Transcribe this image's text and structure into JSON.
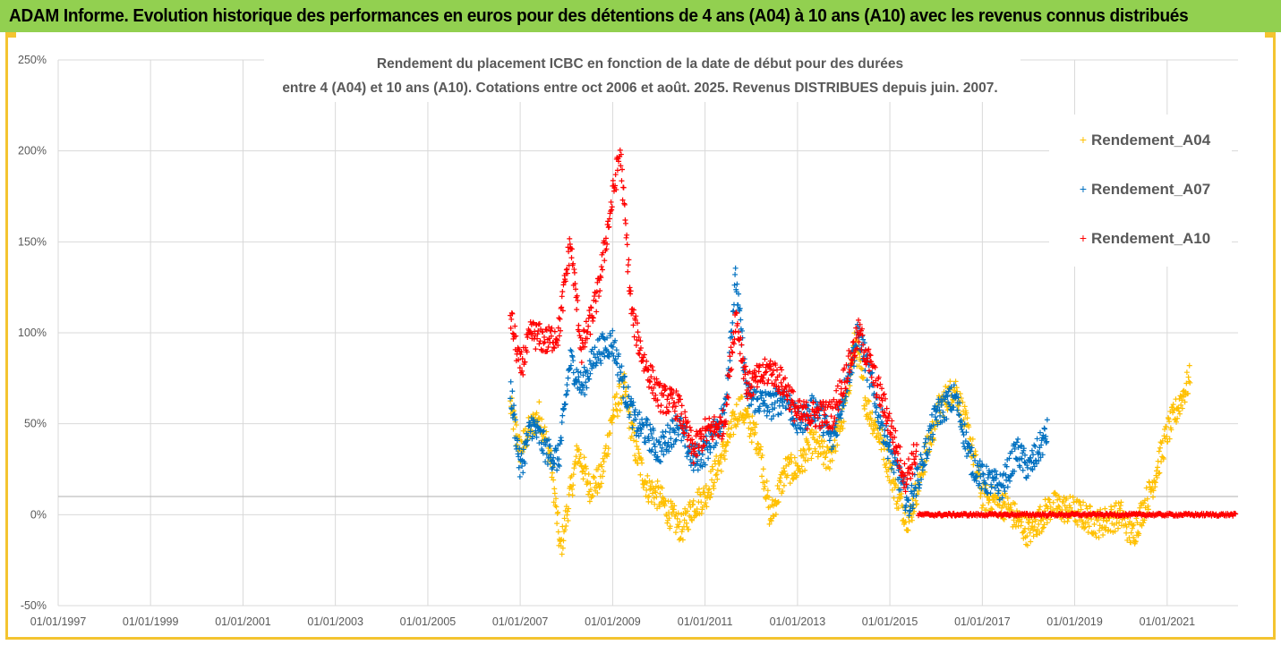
{
  "header": {
    "title": "ADAM Informe. Evolution historique des performances en euros pour des détentions de 4 ans (A04) à 10 ans (A10) avec les revenus connus distribués"
  },
  "colors": {
    "banner": "#92d050",
    "frame": "#f4c430",
    "A04": "#ffc000",
    "A07": "#0070c0",
    "A10": "#ff0000"
  },
  "chart_data": {
    "type": "scatter",
    "title_lines": [
      "Rendement du placement ICBC en fonction de la date de début pour des durées",
      "entre 4 (A04) et 10 ans (A10). Cotations entre oct 2006 et août. 2025. Revenus DISTRIBUES depuis juin. 2007."
    ],
    "xlabel": "",
    "ylabel": "",
    "xlim": [
      "1997-01-01",
      "2022-07-15"
    ],
    "ylim": [
      -50,
      250
    ],
    "x_tick_labels": [
      "01/01/1997",
      "01/01/1999",
      "01/01/2001",
      "01/01/2003",
      "01/01/2005",
      "01/01/2007",
      "01/01/2009",
      "01/01/2011",
      "01/01/2013",
      "01/01/2015",
      "01/01/2017",
      "01/01/2019",
      "01/01/2021"
    ],
    "y_tick_labels": [
      "-50%",
      "0%",
      "50%",
      "100%",
      "150%",
      "200%",
      "250%"
    ],
    "y_ticks": [
      -50,
      0,
      50,
      100,
      150,
      200,
      250
    ],
    "reference_line_y": 10,
    "grid": true,
    "legend_position": "top-right",
    "marker": "+",
    "series": [
      {
        "name": "Rendement_A04",
        "color": "#ffc000",
        "x_start": "2006-10-15",
        "x_end": "2021-07-01",
        "key_points": [
          [
            "2006-10-15",
            60
          ],
          [
            "2007-01-01",
            35
          ],
          [
            "2007-03-01",
            45
          ],
          [
            "2007-06-01",
            55
          ],
          [
            "2007-09-01",
            30
          ],
          [
            "2007-11-15",
            -20
          ],
          [
            "2008-01-15",
            5
          ],
          [
            "2008-04-01",
            35
          ],
          [
            "2008-07-01",
            15
          ],
          [
            "2008-10-01",
            20
          ],
          [
            "2009-01-01",
            55
          ],
          [
            "2009-04-01",
            70
          ],
          [
            "2009-07-01",
            35
          ],
          [
            "2009-10-01",
            15
          ],
          [
            "2010-01-01",
            10
          ],
          [
            "2010-04-01",
            0
          ],
          [
            "2010-07-01",
            -8
          ],
          [
            "2010-10-01",
            5
          ],
          [
            "2011-01-01",
            10
          ],
          [
            "2011-06-01",
            35
          ],
          [
            "2011-10-01",
            60
          ],
          [
            "2012-03-01",
            40
          ],
          [
            "2012-06-01",
            -2
          ],
          [
            "2012-10-01",
            25
          ],
          [
            "2013-01-01",
            25
          ],
          [
            "2013-05-01",
            40
          ],
          [
            "2013-09-01",
            30
          ],
          [
            "2014-01-01",
            55
          ],
          [
            "2014-04-01",
            95
          ],
          [
            "2014-07-01",
            60
          ],
          [
            "2014-11-01",
            40
          ],
          [
            "2015-03-01",
            10
          ],
          [
            "2015-06-01",
            -3
          ],
          [
            "2015-10-01",
            30
          ],
          [
            "2016-02-01",
            60
          ],
          [
            "2016-06-01",
            70
          ],
          [
            "2016-10-01",
            40
          ],
          [
            "2017-01-01",
            10
          ],
          [
            "2017-07-01",
            5
          ],
          [
            "2018-01-01",
            -10
          ],
          [
            "2018-07-01",
            5
          ],
          [
            "2019-01-01",
            2
          ],
          [
            "2019-07-01",
            -5
          ],
          [
            "2020-01-01",
            0
          ],
          [
            "2020-04-01",
            -12
          ],
          [
            "2020-09-01",
            15
          ],
          [
            "2021-01-01",
            45
          ],
          [
            "2021-04-01",
            60
          ],
          [
            "2021-07-01",
            75
          ]
        ]
      },
      {
        "name": "Rendement_A07",
        "color": "#0070c0",
        "x_start": "2006-10-15",
        "x_end": "2018-06-01",
        "key_points": [
          [
            "2006-10-15",
            70
          ],
          [
            "2007-01-01",
            25
          ],
          [
            "2007-04-01",
            50
          ],
          [
            "2007-08-01",
            35
          ],
          [
            "2007-11-01",
            30
          ],
          [
            "2008-02-01",
            85
          ],
          [
            "2008-05-01",
            70
          ],
          [
            "2008-09-01",
            90
          ],
          [
            "2009-01-01",
            95
          ],
          [
            "2009-04-01",
            70
          ],
          [
            "2009-07-01",
            50
          ],
          [
            "2009-10-01",
            45
          ],
          [
            "2010-01-01",
            35
          ],
          [
            "2010-06-01",
            50
          ],
          [
            "2010-10-01",
            30
          ],
          [
            "2011-01-01",
            35
          ],
          [
            "2011-06-01",
            55
          ],
          [
            "2011-09-01",
            130
          ],
          [
            "2011-12-01",
            65
          ],
          [
            "2012-06-01",
            60
          ],
          [
            "2012-10-01",
            65
          ],
          [
            "2013-01-01",
            50
          ],
          [
            "2013-06-01",
            60
          ],
          [
            "2013-10-01",
            40
          ],
          [
            "2014-02-01",
            75
          ],
          [
            "2014-05-01",
            100
          ],
          [
            "2014-09-01",
            65
          ],
          [
            "2015-01-01",
            35
          ],
          [
            "2015-06-01",
            5
          ],
          [
            "2015-09-01",
            25
          ],
          [
            "2016-01-01",
            55
          ],
          [
            "2016-06-01",
            65
          ],
          [
            "2016-10-01",
            30
          ],
          [
            "2017-01-01",
            20
          ],
          [
            "2017-06-01",
            15
          ],
          [
            "2017-10-01",
            35
          ],
          [
            "2018-01-01",
            25
          ],
          [
            "2018-06-01",
            45
          ]
        ]
      },
      {
        "name": "Rendement_A10",
        "color": "#ff0000",
        "x_start": "2006-10-15",
        "x_end": "2015-08-01",
        "zero_segment": [
          "2015-08-15",
          "2022-07-01"
        ],
        "key_points": [
          [
            "2006-10-15",
            110
          ],
          [
            "2007-01-01",
            80
          ],
          [
            "2007-04-01",
            100
          ],
          [
            "2007-08-01",
            95
          ],
          [
            "2007-11-01",
            100
          ],
          [
            "2008-02-01",
            150
          ],
          [
            "2008-05-01",
            90
          ],
          [
            "2008-09-01",
            120
          ],
          [
            "2009-01-01",
            175
          ],
          [
            "2009-03-01",
            200
          ],
          [
            "2009-06-01",
            110
          ],
          [
            "2009-09-01",
            85
          ],
          [
            "2010-01-01",
            65
          ],
          [
            "2010-06-01",
            60
          ],
          [
            "2010-10-01",
            35
          ],
          [
            "2011-01-01",
            45
          ],
          [
            "2011-06-01",
            50
          ],
          [
            "2011-09-01",
            110
          ],
          [
            "2011-12-01",
            70
          ],
          [
            "2012-06-01",
            80
          ],
          [
            "2012-10-01",
            70
          ],
          [
            "2013-01-01",
            55
          ],
          [
            "2013-06-01",
            55
          ],
          [
            "2013-10-01",
            55
          ],
          [
            "2014-02-01",
            80
          ],
          [
            "2014-05-01",
            100
          ],
          [
            "2014-09-01",
            75
          ],
          [
            "2015-01-01",
            50
          ],
          [
            "2015-05-01",
            20
          ],
          [
            "2015-08-01",
            35
          ]
        ]
      }
    ]
  }
}
